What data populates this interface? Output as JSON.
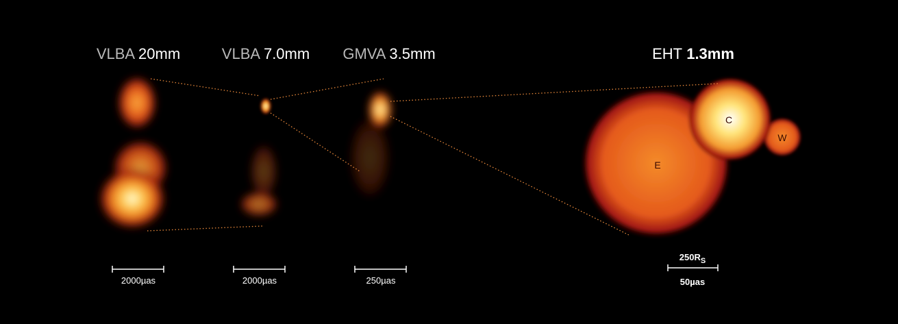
{
  "panels": [
    {
      "array": "VLBA",
      "wavelength": "20mm",
      "scale_bar": "2000µas"
    },
    {
      "array": "VLBA",
      "wavelength": "7.0mm",
      "scale_bar": "2000µas"
    },
    {
      "array": "GMVA",
      "wavelength": "3.5mm",
      "scale_bar": "250µas"
    },
    {
      "array": "EHT",
      "wavelength": "1.3mm",
      "scale_bar": "50µas",
      "scale_bar_alt": "250R",
      "scale_bar_alt_sub": "S"
    }
  ],
  "components": [
    "E",
    "C",
    "W"
  ]
}
